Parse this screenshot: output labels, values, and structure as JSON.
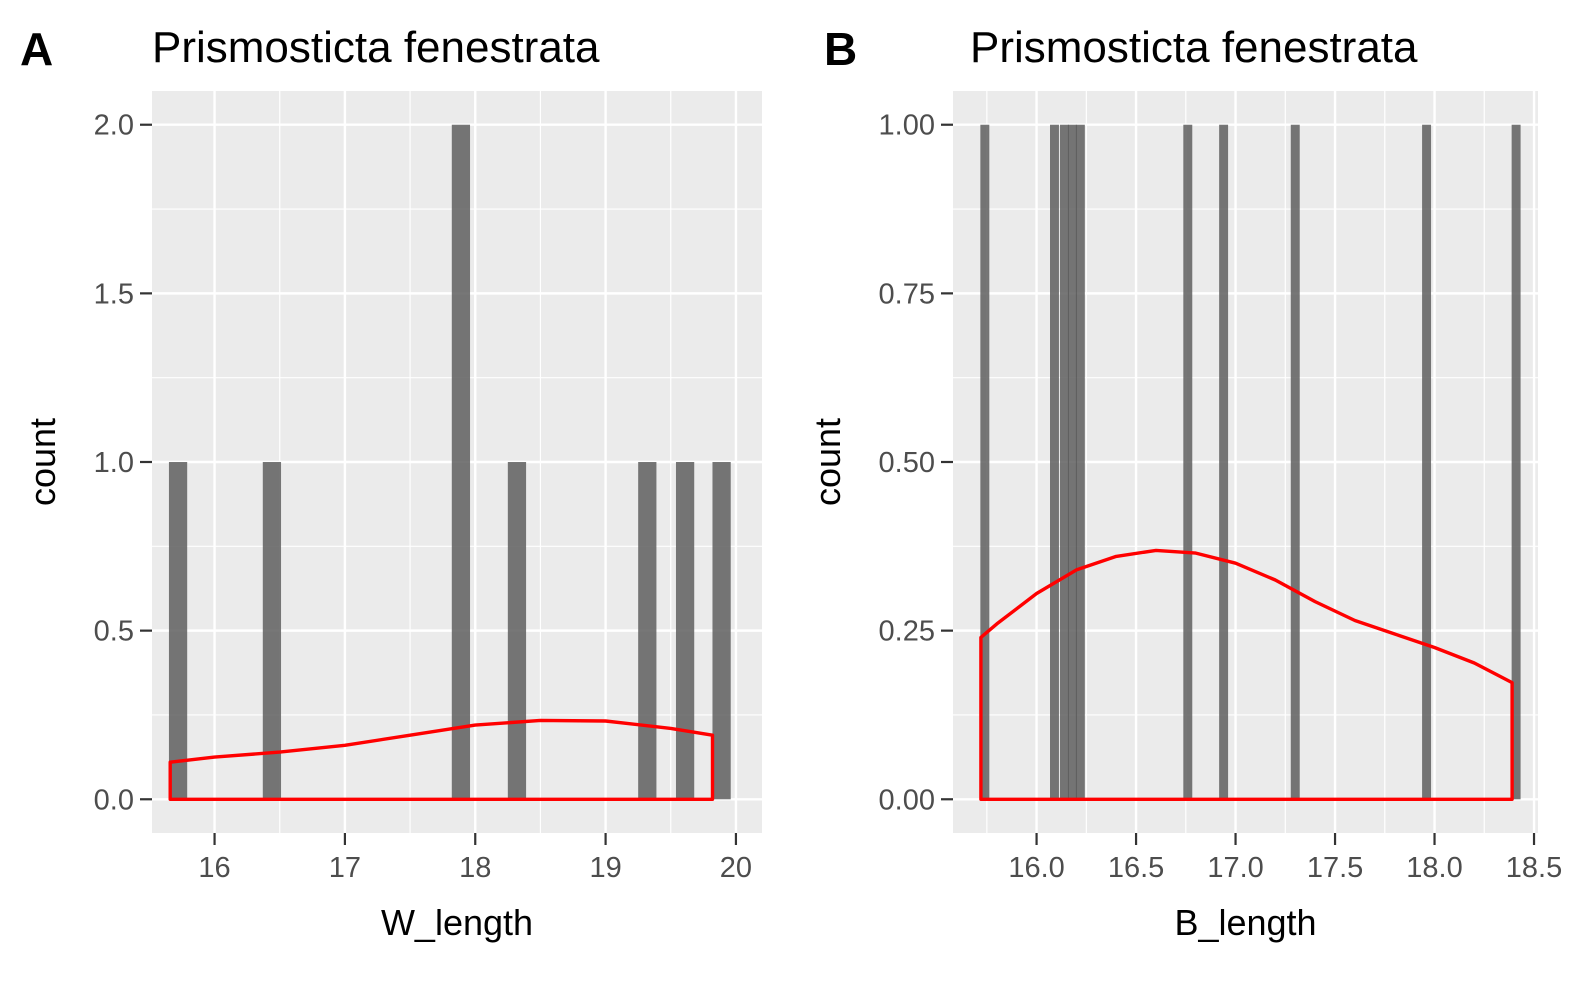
{
  "chart_data": [
    {
      "type": "histogram",
      "panel_label": "A",
      "title": "Prismosticta fenestrata",
      "xlabel": "W_length",
      "ylabel": "count",
      "xlim": [
        15.52,
        20.2
      ],
      "ylim": [
        -0.1,
        2.1
      ],
      "x_ticks": [
        16,
        17,
        18,
        19,
        20
      ],
      "x_tick_labels": [
        "16",
        "17",
        "18",
        "19",
        "20"
      ],
      "y_ticks": [
        0,
        0.5,
        1,
        1.5,
        2
      ],
      "y_tick_labels": [
        "0.0",
        "0.5",
        "1.0",
        "1.5",
        "2.0"
      ],
      "bin_width": 0.14,
      "bars": [
        {
          "x": 15.72,
          "count": 1
        },
        {
          "x": 16.44,
          "count": 1
        },
        {
          "x": 17.89,
          "count": 2
        },
        {
          "x": 18.32,
          "count": 1
        },
        {
          "x": 19.32,
          "count": 1
        },
        {
          "x": 19.61,
          "count": 1
        },
        {
          "x": 19.89,
          "count": 1
        }
      ],
      "density": {
        "x": [
          15.66,
          16.0,
          16.5,
          17.0,
          17.5,
          18.0,
          18.5,
          19.0,
          19.5,
          19.82
        ],
        "y": [
          0.11,
          0.125,
          0.14,
          0.16,
          0.19,
          0.22,
          0.234,
          0.232,
          0.21,
          0.19
        ]
      },
      "grid": true,
      "colors": {
        "panel_bg": "#ebebeb",
        "grid": "#ffffff",
        "bar": "#595959",
        "density": "#ff0000"
      }
    },
    {
      "type": "histogram",
      "panel_label": "B",
      "title": "Prismosticta fenestrata",
      "xlabel": "B_length",
      "ylabel": "count",
      "xlim": [
        15.58,
        18.52
      ],
      "ylim": [
        -0.05,
        1.05
      ],
      "x_ticks": [
        16.0,
        16.5,
        17.0,
        17.5,
        18.0,
        18.5
      ],
      "x_tick_labels": [
        "16.0",
        "16.5",
        "17.0",
        "17.5",
        "18.0",
        "18.5"
      ],
      "y_ticks": [
        0,
        0.25,
        0.5,
        0.75,
        1
      ],
      "y_tick_labels": [
        "0.00",
        "0.25",
        "0.50",
        "0.75",
        "1.00"
      ],
      "bin_width": 0.045,
      "bars": [
        {
          "x": 15.74,
          "count": 1
        },
        {
          "x": 16.09,
          "count": 1
        },
        {
          "x": 16.14,
          "count": 1
        },
        {
          "x": 16.18,
          "count": 1
        },
        {
          "x": 16.22,
          "count": 1
        },
        {
          "x": 16.76,
          "count": 1
        },
        {
          "x": 16.94,
          "count": 1
        },
        {
          "x": 17.3,
          "count": 1
        },
        {
          "x": 17.96,
          "count": 1
        },
        {
          "x": 18.41,
          "count": 1
        }
      ],
      "density": {
        "x": [
          15.72,
          15.8,
          16.0,
          16.2,
          16.4,
          16.6,
          16.8,
          17.0,
          17.2,
          17.4,
          17.6,
          17.8,
          18.0,
          18.2,
          18.39
        ],
        "y": [
          0.24,
          0.26,
          0.305,
          0.34,
          0.36,
          0.369,
          0.365,
          0.35,
          0.325,
          0.293,
          0.265,
          0.245,
          0.225,
          0.202,
          0.173
        ]
      },
      "grid": true,
      "colors": {
        "panel_bg": "#ebebeb",
        "grid": "#ffffff",
        "bar": "#595959",
        "density": "#ff0000"
      }
    }
  ]
}
